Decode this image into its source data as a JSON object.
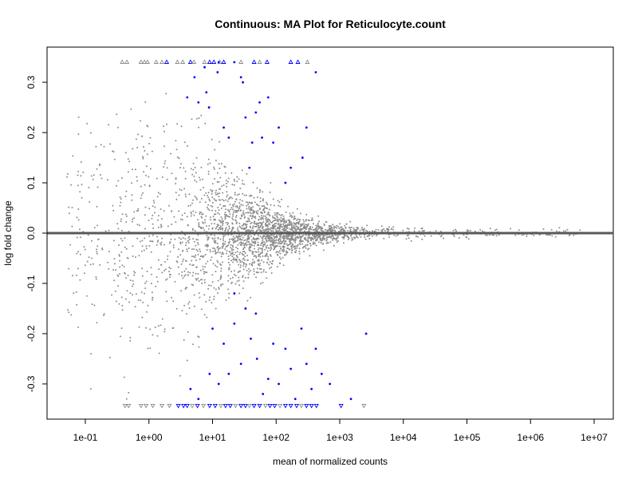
{
  "chart_data": {
    "type": "scatter",
    "title": "Continuous: MA Plot for Reticulocyte.count",
    "xlabel": "mean of normalized counts",
    "ylabel": "log fold change",
    "x_scale": "log10",
    "xlim": [
      0.025,
      20000000
    ],
    "ylim": [
      -0.37,
      0.37
    ],
    "x_ticks": [
      "1e-01",
      "1e+00",
      "1e+01",
      "1e+02",
      "1e+03",
      "1e+04",
      "1e+05",
      "1e+06",
      "1e+07"
    ],
    "x_tick_values": [
      0.1,
      1,
      10,
      100,
      1000,
      10000,
      100000,
      1000000,
      10000000
    ],
    "y_ticks": [
      "-0.3",
      "-0.2",
      "-0.1",
      "0.0",
      "0.1",
      "0.2",
      "0.3"
    ],
    "y_tick_values": [
      -0.3,
      -0.2,
      -0.1,
      0.0,
      0.1,
      0.2,
      0.3
    ],
    "reference_line_y": 0,
    "colors": {
      "non_significant": "#8c8c8c",
      "significant": "#0000ff",
      "reference_line": "#595959",
      "axis": "#000000"
    },
    "clip_marker_y": {
      "top": 0.34,
      "bottom": -0.343
    },
    "series": [
      {
        "name": "",
        "color": "#0000ff",
        "points": [
          [
            4.0,
            0.27
          ],
          [
            5.2,
            0.31
          ],
          [
            6.0,
            0.26
          ],
          [
            7.5,
            0.33
          ],
          [
            8.0,
            0.28
          ],
          [
            8.8,
            0.25
          ],
          [
            12.0,
            0.32
          ],
          [
            15.0,
            0.21
          ],
          [
            18.0,
            0.19
          ],
          [
            28.0,
            0.31
          ],
          [
            30.0,
            0.3
          ],
          [
            33.0,
            0.23
          ],
          [
            42.0,
            0.18
          ],
          [
            48.0,
            0.24
          ],
          [
            55.0,
            0.26
          ],
          [
            60.0,
            0.19
          ],
          [
            75.0,
            0.27
          ],
          [
            90.0,
            0.18
          ],
          [
            110.0,
            0.21
          ],
          [
            140.0,
            0.1
          ],
          [
            170.0,
            0.13
          ],
          [
            260.0,
            0.15
          ],
          [
            300.0,
            0.21
          ],
          [
            420.0,
            0.32
          ],
          [
            38.0,
            0.13
          ],
          [
            12.5,
            0.34
          ],
          [
            22.0,
            0.34
          ],
          [
            4.5,
            -0.31
          ],
          [
            6.0,
            -0.33
          ],
          [
            9.0,
            -0.28
          ],
          [
            10.0,
            -0.19
          ],
          [
            12.5,
            -0.3
          ],
          [
            15.0,
            -0.22
          ],
          [
            18.0,
            -0.28
          ],
          [
            22.0,
            -0.18
          ],
          [
            28.0,
            -0.26
          ],
          [
            33.0,
            -0.15
          ],
          [
            40.0,
            -0.21
          ],
          [
            50.0,
            -0.25
          ],
          [
            62.0,
            -0.32
          ],
          [
            75.0,
            -0.29
          ],
          [
            90.0,
            -0.22
          ],
          [
            110.0,
            -0.3
          ],
          [
            140.0,
            -0.23
          ],
          [
            170.0,
            -0.27
          ],
          [
            200.0,
            -0.33
          ],
          [
            250.0,
            -0.19
          ],
          [
            300.0,
            -0.26
          ],
          [
            360.0,
            -0.31
          ],
          [
            420.0,
            -0.23
          ],
          [
            520.0,
            -0.28
          ],
          [
            700.0,
            -0.3
          ],
          [
            1500.0,
            -0.33
          ],
          [
            2600.0,
            -0.2
          ],
          [
            48.0,
            -0.16
          ],
          [
            22.0,
            -0.12
          ]
        ]
      }
    ],
    "top_clipped_markers": [
      {
        "x": 0.38,
        "color": "#8c8c8c"
      },
      {
        "x": 0.45,
        "color": "#8c8c8c"
      },
      {
        "x": 0.75,
        "color": "#8c8c8c"
      },
      {
        "x": 0.85,
        "color": "#8c8c8c"
      },
      {
        "x": 0.95,
        "color": "#8c8c8c"
      },
      {
        "x": 1.3,
        "color": "#8c8c8c"
      },
      {
        "x": 1.6,
        "color": "#8c8c8c"
      },
      {
        "x": 1.9,
        "color": "#0000ff"
      },
      {
        "x": 2.8,
        "color": "#8c8c8c"
      },
      {
        "x": 3.4,
        "color": "#8c8c8c"
      },
      {
        "x": 4.5,
        "color": "#0000ff"
      },
      {
        "x": 5.1,
        "color": "#8c8c8c"
      },
      {
        "x": 7.5,
        "color": "#8c8c8c"
      },
      {
        "x": 9.0,
        "color": "#0000ff"
      },
      {
        "x": 10.5,
        "color": "#0000ff"
      },
      {
        "x": 13.0,
        "color": "#8c8c8c"
      },
      {
        "x": 15.0,
        "color": "#0000ff"
      },
      {
        "x": 28.0,
        "color": "#8c8c8c"
      },
      {
        "x": 45.0,
        "color": "#0000ff"
      },
      {
        "x": 55.0,
        "color": "#8c8c8c"
      },
      {
        "x": 72.0,
        "color": "#0000ff"
      },
      {
        "x": 170.0,
        "color": "#0000ff"
      },
      {
        "x": 220.0,
        "color": "#0000ff"
      },
      {
        "x": 310.0,
        "color": "#8c8c8c"
      }
    ],
    "bottom_clipped_markers": [
      {
        "x": 0.42,
        "color": "#8c8c8c"
      },
      {
        "x": 0.48,
        "color": "#8c8c8c"
      },
      {
        "x": 0.75,
        "color": "#8c8c8c"
      },
      {
        "x": 0.9,
        "color": "#8c8c8c"
      },
      {
        "x": 1.15,
        "color": "#8c8c8c"
      },
      {
        "x": 1.6,
        "color": "#8c8c8c"
      },
      {
        "x": 2.1,
        "color": "#8c8c8c"
      },
      {
        "x": 2.9,
        "color": "#0000ff"
      },
      {
        "x": 3.5,
        "color": "#0000ff"
      },
      {
        "x": 4.0,
        "color": "#0000ff"
      },
      {
        "x": 4.8,
        "color": "#8c8c8c"
      },
      {
        "x": 5.8,
        "color": "#0000ff"
      },
      {
        "x": 7.2,
        "color": "#8c8c8c"
      },
      {
        "x": 9.0,
        "color": "#0000ff"
      },
      {
        "x": 11.0,
        "color": "#0000ff"
      },
      {
        "x": 13.5,
        "color": "#8c8c8c"
      },
      {
        "x": 16.0,
        "color": "#0000ff"
      },
      {
        "x": 19.0,
        "color": "#0000ff"
      },
      {
        "x": 23.0,
        "color": "#8c8c8c"
      },
      {
        "x": 28.0,
        "color": "#0000ff"
      },
      {
        "x": 33.0,
        "color": "#0000ff"
      },
      {
        "x": 38.0,
        "color": "#8c8c8c"
      },
      {
        "x": 45.0,
        "color": "#0000ff"
      },
      {
        "x": 55.0,
        "color": "#0000ff"
      },
      {
        "x": 68.0,
        "color": "#8c8c8c"
      },
      {
        "x": 80.0,
        "color": "#0000ff"
      },
      {
        "x": 95.0,
        "color": "#0000ff"
      },
      {
        "x": 115.0,
        "color": "#8c8c8c"
      },
      {
        "x": 140.0,
        "color": "#0000ff"
      },
      {
        "x": 170.0,
        "color": "#0000ff"
      },
      {
        "x": 210.0,
        "color": "#0000ff"
      },
      {
        "x": 250.0,
        "color": "#8c8c8c"
      },
      {
        "x": 300.0,
        "color": "#0000ff"
      },
      {
        "x": 360.0,
        "color": "#0000ff"
      },
      {
        "x": 430.0,
        "color": "#0000ff"
      },
      {
        "x": 1050.0,
        "color": "#0000ff"
      },
      {
        "x": 2400.0,
        "color": "#8c8c8c"
      }
    ]
  }
}
